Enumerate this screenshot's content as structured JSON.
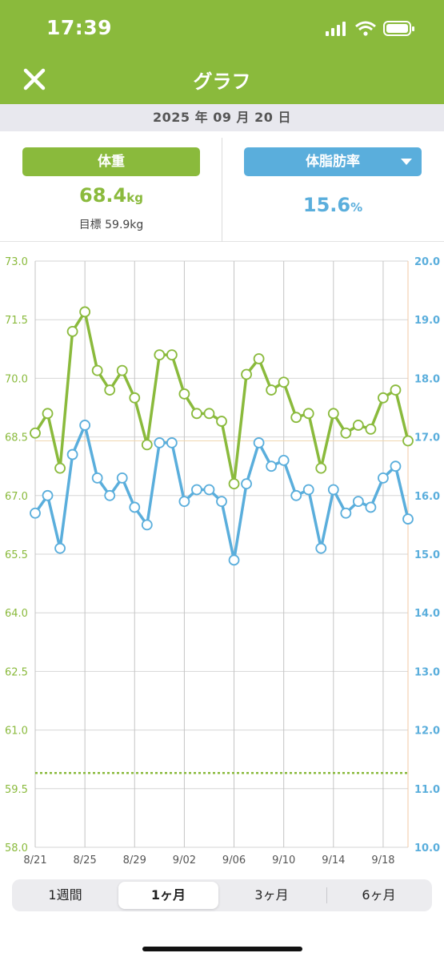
{
  "status_bar": {
    "time": "17:39"
  },
  "header": {
    "title": "グラフ",
    "close_icon": "close-icon"
  },
  "date": "2025 年 09 月 20 日",
  "summary": {
    "weight_label": "体重",
    "weight_value": "68.4",
    "weight_unit": "kg",
    "goal_text": "目標 59.9kg",
    "fat_label": "体脂肪率",
    "fat_value": "15.6",
    "fat_unit": "%"
  },
  "range_tabs": [
    "1週間",
    "1ヶ月",
    "3ヶ月",
    "6ヶ月"
  ],
  "selected_range": "1ヶ月",
  "colors": {
    "weight": "#8aba3c",
    "fat": "#5aaedc",
    "header": "#8aba3c"
  },
  "chart_data": {
    "type": "line",
    "x_ticks": [
      "8/21",
      "8/25",
      "8/29",
      "9/02",
      "9/06",
      "9/10",
      "9/14",
      "9/18"
    ],
    "left_axis": {
      "ticks": [
        "73.0",
        "71.5",
        "70.0",
        "68.5",
        "67.0",
        "65.5",
        "64.0",
        "62.5",
        "61.0",
        "59.5",
        "58.0"
      ],
      "ylim": [
        58.0,
        73.0
      ]
    },
    "right_axis": {
      "ticks": [
        "20.0",
        "19.0",
        "18.0",
        "17.0",
        "16.0",
        "15.0",
        "14.0",
        "13.0",
        "12.0",
        "11.0",
        "10.0"
      ],
      "ylim": [
        10.0,
        20.0
      ]
    },
    "goal_value": 59.9,
    "dates": [
      "8/21",
      "8/22",
      "8/23",
      "8/24",
      "8/25",
      "8/26",
      "8/27",
      "8/28",
      "8/29",
      "8/30",
      "8/31",
      "9/01",
      "9/02",
      "9/03",
      "9/04",
      "9/05",
      "9/06",
      "9/07",
      "9/08",
      "9/09",
      "9/10",
      "9/11",
      "9/12",
      "9/13",
      "9/14",
      "9/15",
      "9/16",
      "9/17",
      "9/18",
      "9/19",
      "9/20"
    ],
    "series": [
      {
        "values": [
          68.6,
          69.1,
          67.7,
          71.2,
          71.7,
          70.2,
          69.7,
          70.2,
          69.5,
          68.3,
          70.6,
          70.6,
          69.6,
          69.1,
          69.1,
          68.9,
          67.3,
          70.1,
          70.5,
          69.7,
          69.9,
          69.0,
          69.1,
          67.7,
          69.1,
          68.6,
          68.8,
          68.7,
          69.5,
          69.7,
          68.4
        ]
      },
      {
        "values": [
          15.7,
          16.0,
          15.1,
          16.7,
          17.2,
          16.3,
          16.0,
          16.3,
          15.8,
          15.5,
          16.9,
          16.9,
          15.9,
          16.1,
          16.1,
          15.9,
          14.9,
          16.2,
          16.9,
          16.5,
          16.6,
          16.0,
          16.1,
          15.1,
          16.1,
          15.7,
          15.9,
          15.8,
          16.3,
          16.5,
          15.6
        ]
      }
    ]
  }
}
